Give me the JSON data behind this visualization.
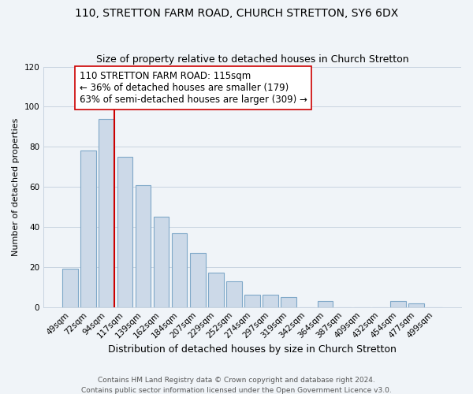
{
  "title": "110, STRETTON FARM ROAD, CHURCH STRETTON, SY6 6DX",
  "subtitle": "Size of property relative to detached houses in Church Stretton",
  "xlabel": "Distribution of detached houses by size in Church Stretton",
  "ylabel": "Number of detached properties",
  "bar_color": "#ccd9e8",
  "bar_edge_color": "#7fa8c8",
  "categories": [
    "49sqm",
    "72sqm",
    "94sqm",
    "117sqm",
    "139sqm",
    "162sqm",
    "184sqm",
    "207sqm",
    "229sqm",
    "252sqm",
    "274sqm",
    "297sqm",
    "319sqm",
    "342sqm",
    "364sqm",
    "387sqm",
    "409sqm",
    "432sqm",
    "454sqm",
    "477sqm",
    "499sqm"
  ],
  "values": [
    19,
    78,
    94,
    75,
    61,
    45,
    37,
    27,
    17,
    13,
    6,
    6,
    5,
    0,
    3,
    0,
    0,
    0,
    3,
    2,
    0
  ],
  "vline_index": 2,
  "vline_color": "#cc0000",
  "ylim": [
    0,
    120
  ],
  "yticks": [
    0,
    20,
    40,
    60,
    80,
    100,
    120
  ],
  "annotation_title": "110 STRETTON FARM ROAD: 115sqm",
  "annotation_line1": "← 36% of detached houses are smaller (179)",
  "annotation_line2": "63% of semi-detached houses are larger (309) →",
  "footer1": "Contains HM Land Registry data © Crown copyright and database right 2024.",
  "footer2": "Contains public sector information licensed under the Open Government Licence v3.0.",
  "title_fontsize": 10,
  "subtitle_fontsize": 9,
  "xlabel_fontsize": 9,
  "ylabel_fontsize": 8,
  "tick_fontsize": 7.5,
  "annotation_fontsize": 8.5,
  "footer_fontsize": 6.5,
  "bg_color": "#f0f4f8"
}
